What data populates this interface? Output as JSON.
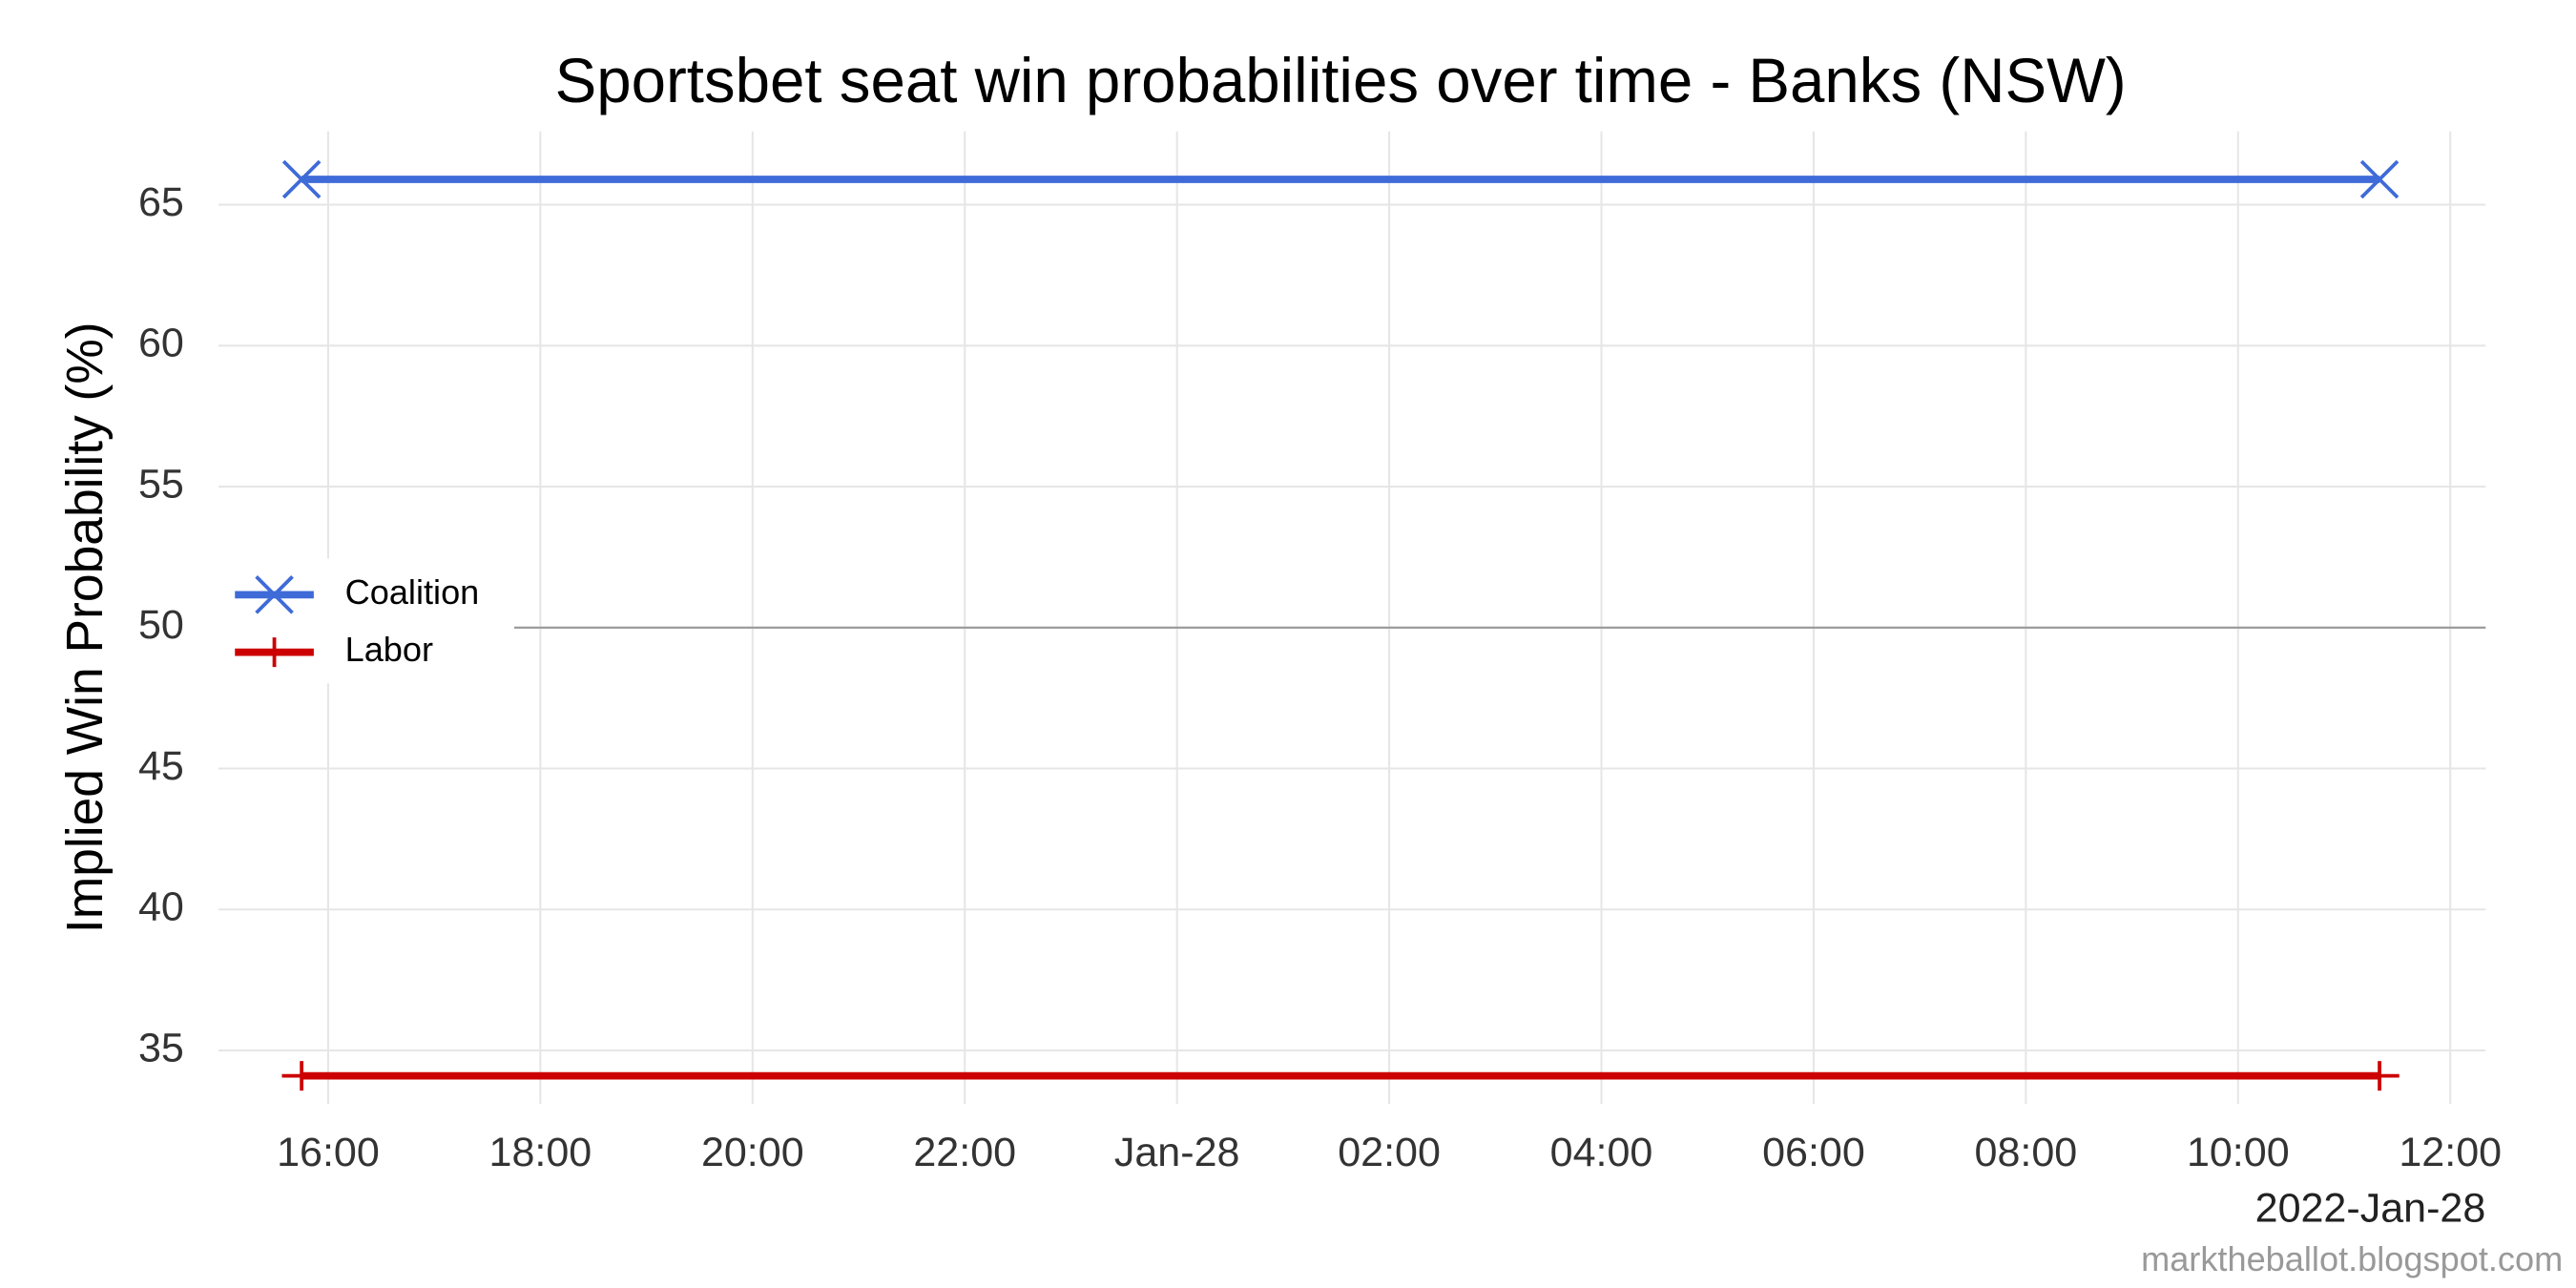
{
  "chart_data": {
    "type": "line",
    "title": "Sportsbet seat win probabilities over time - Banks (NSW)",
    "y_label": "Implied Win Probability (%)",
    "x_label": "2022-Jan-28",
    "caption": "marktheballot.blogspot.com",
    "x": [
      "2022-01-27T15:45",
      "2022-01-28T11:20"
    ],
    "series": [
      {
        "name": "Coalition",
        "color": "#3f6bd8",
        "marker": "x",
        "values": [
          65.9,
          65.9
        ]
      },
      {
        "name": "Labor",
        "color": "#cc0000",
        "marker": "+",
        "values": [
          34.1,
          34.1
        ]
      }
    ],
    "xlim": [
      "2022-01-27T14:58",
      "2022-01-28T12:20"
    ],
    "xticks": [
      {
        "value": "2022-01-27T16:00",
        "label": "16:00"
      },
      {
        "value": "2022-01-27T18:00",
        "label": "18:00"
      },
      {
        "value": "2022-01-27T20:00",
        "label": "20:00"
      },
      {
        "value": "2022-01-27T22:00",
        "label": "22:00"
      },
      {
        "value": "2022-01-28T00:00",
        "label": "Jan-28"
      },
      {
        "value": "2022-01-28T02:00",
        "label": "02:00"
      },
      {
        "value": "2022-01-28T04:00",
        "label": "04:00"
      },
      {
        "value": "2022-01-28T06:00",
        "label": "06:00"
      },
      {
        "value": "2022-01-28T08:00",
        "label": "08:00"
      },
      {
        "value": "2022-01-28T10:00",
        "label": "10:00"
      },
      {
        "value": "2022-01-28T12:00",
        "label": "12:00"
      }
    ],
    "ylim": [
      33.1,
      67.6
    ],
    "yticks": [
      35,
      40,
      45,
      50,
      55,
      60,
      65
    ],
    "hline": 50,
    "grid": true,
    "legend": "left"
  }
}
